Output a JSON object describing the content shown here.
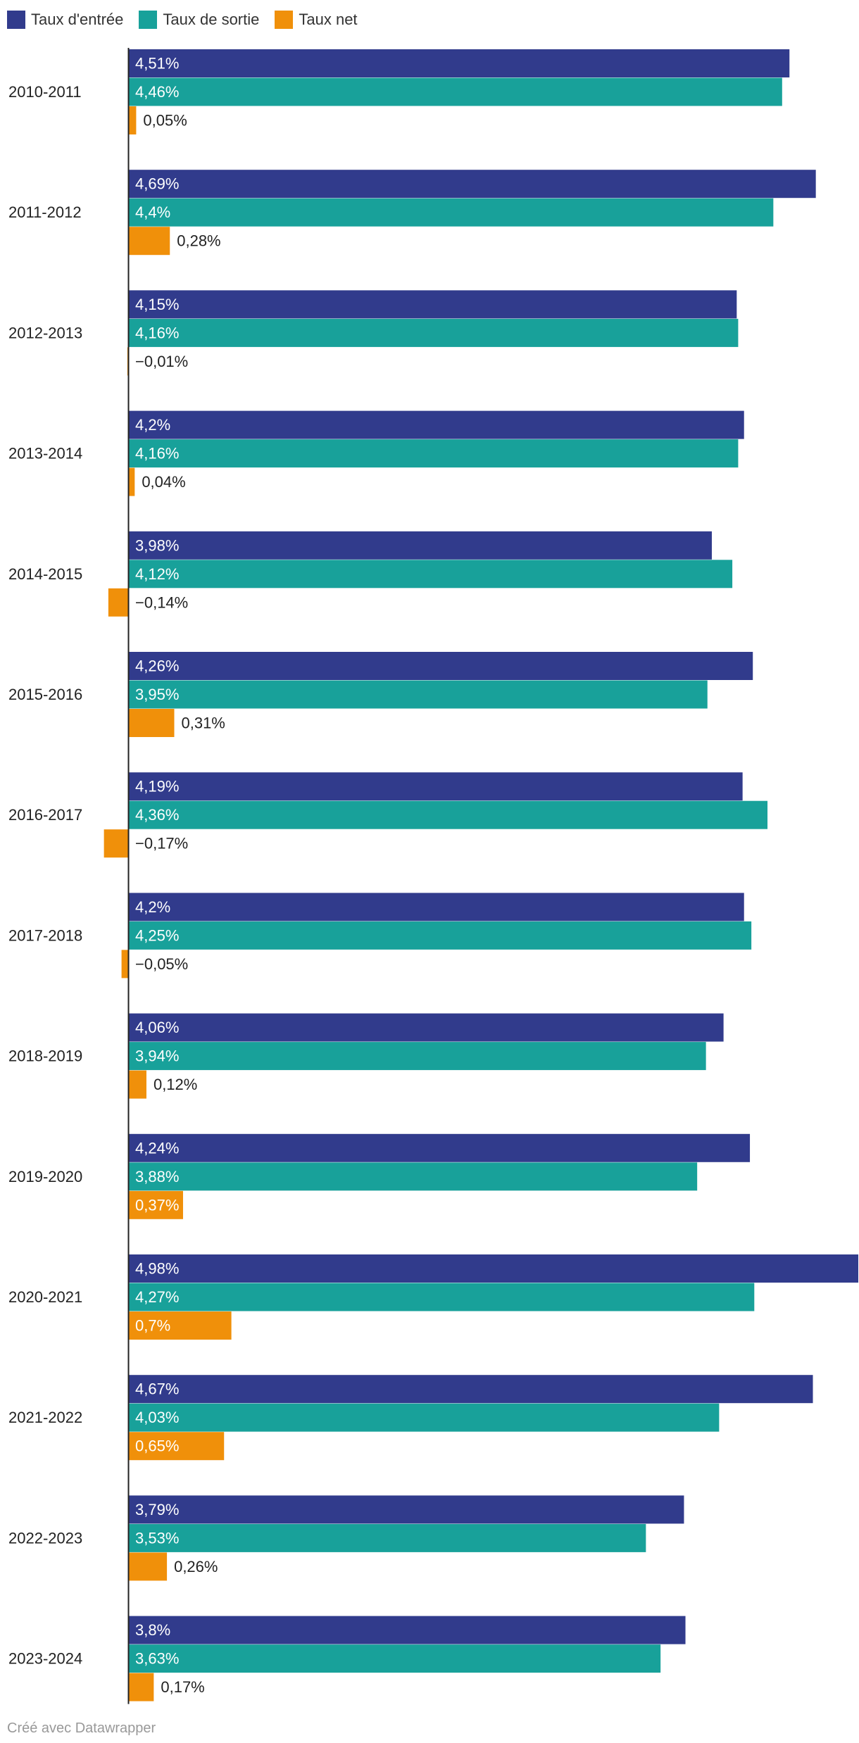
{
  "chart_data": {
    "type": "bar",
    "orientation": "horizontal-grouped",
    "title": "",
    "xlabel": "",
    "ylabel": "",
    "xlim": [
      -0.17,
      4.98
    ],
    "grid": false,
    "legend_position": "top-left",
    "categories": [
      "2010-2011",
      "2011-2012",
      "2012-2013",
      "2013-2014",
      "2014-2015",
      "2015-2016",
      "2016-2017",
      "2017-2018",
      "2018-2019",
      "2019-2020",
      "2020-2021",
      "2021-2022",
      "2022-2023",
      "2023-2024"
    ],
    "series": [
      {
        "name": "Taux d'entrée",
        "color": "#313b8c",
        "values": [
          4.51,
          4.69,
          4.15,
          4.2,
          3.98,
          4.26,
          4.19,
          4.2,
          4.06,
          4.24,
          4.98,
          4.67,
          3.79,
          3.8
        ],
        "labels": [
          "4,51%",
          "4,69%",
          "4,15%",
          "4,2%",
          "3,98%",
          "4,26%",
          "4,19%",
          "4,2%",
          "4,06%",
          "4,24%",
          "4,98%",
          "4,67%",
          "3,79%",
          "3,8%"
        ]
      },
      {
        "name": "Taux de sortie",
        "color": "#18a19a",
        "values": [
          4.46,
          4.4,
          4.16,
          4.16,
          4.12,
          3.95,
          4.36,
          4.25,
          3.94,
          3.88,
          4.27,
          4.03,
          3.53,
          3.63
        ],
        "labels": [
          "4,46%",
          "4,4%",
          "4,16%",
          "4,16%",
          "4,12%",
          "3,95%",
          "4,36%",
          "4,25%",
          "3,94%",
          "3,88%",
          "4,27%",
          "4,03%",
          "3,53%",
          "3,63%"
        ]
      },
      {
        "name": "Taux net",
        "color": "#f0900a",
        "values": [
          0.05,
          0.28,
          -0.01,
          0.04,
          -0.14,
          0.31,
          -0.17,
          -0.05,
          0.12,
          0.37,
          0.7,
          0.65,
          0.26,
          0.17
        ],
        "labels": [
          "0,05%",
          "0,28%",
          "−0,01%",
          "0,04%",
          "−0,14%",
          "0,31%",
          "−0,17%",
          "−0,05%",
          "0,12%",
          "0,37%",
          "0,7%",
          "0,65%",
          "0,26%",
          "0,17%"
        ]
      }
    ]
  },
  "footer": {
    "credit": "Créé avec Datawrapper"
  }
}
